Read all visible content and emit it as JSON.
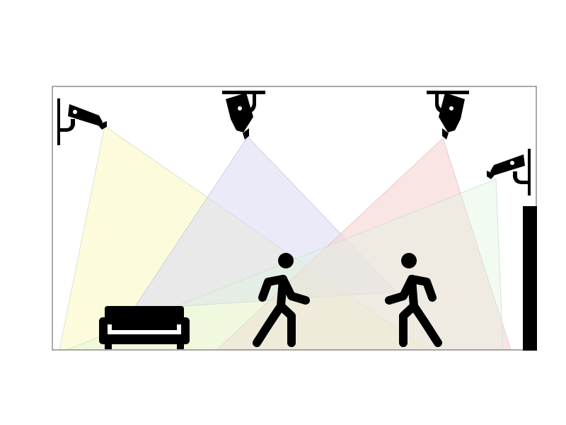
{
  "colors": {
    "background": "#ffffff",
    "frame": "#555555",
    "silhouette": "#000000",
    "cone_yellow": "#fbfbd0",
    "cone_blue": "#d8d8f4",
    "cone_red": "#f6d3d3",
    "cone_green": "#dff5df"
  },
  "scene": {
    "cameras": [
      {
        "name": "camera-wall-left",
        "icon": "cctv-camera-wall-mount-icon",
        "cone_color": "yellow"
      },
      {
        "name": "camera-ceiling-left",
        "icon": "cctv-camera-ceiling-mount-icon",
        "cone_color": "blue"
      },
      {
        "name": "camera-ceiling-right",
        "icon": "cctv-camera-ceiling-mount-icon",
        "cone_color": "red"
      },
      {
        "name": "camera-wall-right",
        "icon": "cctv-camera-wall-mount-icon",
        "cone_color": "green"
      }
    ],
    "objects": [
      {
        "name": "sofa",
        "icon": "sofa-icon"
      },
      {
        "name": "person-walking-right",
        "icon": "person-walking-icon"
      },
      {
        "name": "person-walking-left",
        "icon": "person-walking-icon"
      },
      {
        "name": "door",
        "icon": "door-edge-icon"
      }
    ]
  }
}
